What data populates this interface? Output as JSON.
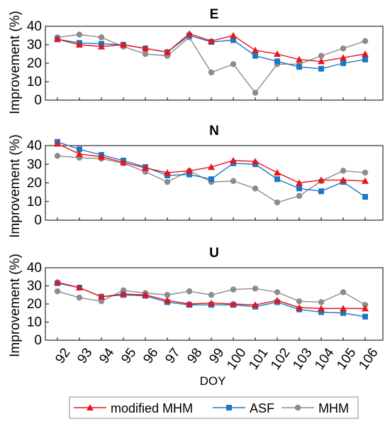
{
  "chart_data": {
    "type": "line",
    "x": [
      92,
      93,
      94,
      95,
      96,
      97,
      98,
      99,
      100,
      101,
      102,
      103,
      104,
      105,
      106
    ],
    "xtick_labels": [
      "92",
      "93",
      "94",
      "95",
      "96",
      "97",
      "98",
      "99",
      "100",
      "101",
      "102",
      "103",
      "104",
      "105",
      "106"
    ],
    "xlabel": "DOY",
    "ylabel": "Improvement (%)",
    "ylim": [
      0,
      40
    ],
    "yticks": [
      0,
      10,
      20,
      30,
      40
    ],
    "ytick_labels": [
      "0",
      "10",
      "20",
      "30",
      "40"
    ],
    "grid": false,
    "legend_position": "bottom",
    "series_styles": [
      {
        "name": "modified MHM",
        "color": "#e8141b",
        "marker": "triangle"
      },
      {
        "name": "ASF",
        "color": "#1f77c1",
        "marker": "square"
      },
      {
        "name": "MHM",
        "color": "#8c8c8c",
        "marker": "circle"
      }
    ],
    "panels": [
      {
        "title": "E",
        "series": [
          {
            "name": "modified MHM",
            "values": [
              33,
              30,
              29,
              30,
              28,
              26,
              36,
              32,
              35,
              27,
              25,
              22,
              21,
              23,
              25
            ]
          },
          {
            "name": "ASF",
            "values": [
              33,
              31,
              30.5,
              30,
              28,
              26,
              35,
              31.5,
              32.5,
              24,
              21,
              18,
              17,
              20,
              22
            ]
          },
          {
            "name": "MHM",
            "values": [
              34,
              35.5,
              34,
              29,
              25,
              24,
              34,
              15,
              19.5,
              4,
              19.5,
              19.5,
              24,
              28,
              32
            ]
          }
        ]
      },
      {
        "title": "N",
        "series": [
          {
            "name": "modified MHM",
            "values": [
              41,
              35.5,
              34,
              31,
              28,
              25.5,
              26.5,
              28.5,
              32,
              31.5,
              25.5,
              20,
              21.5,
              21.5,
              21
            ]
          },
          {
            "name": "ASF",
            "values": [
              42,
              38,
              35,
              32,
              28.5,
              24,
              24.5,
              22,
              30.5,
              30,
              22,
              17,
              15.5,
              20.5,
              12.5
            ]
          },
          {
            "name": "MHM",
            "values": [
              34.5,
              33.5,
              33,
              30.5,
              26,
              20.5,
              26.5,
              20.5,
              21,
              17,
              9.5,
              13,
              21,
              26.5,
              25.5
            ]
          }
        ]
      },
      {
        "title": "U",
        "series": [
          {
            "name": "modified MHM",
            "values": [
              32,
              29,
              24,
              25.5,
              25,
              22,
              20,
              20.5,
              20,
              19.5,
              22,
              18,
              17.5,
              17.5,
              17.5
            ]
          },
          {
            "name": "ASF",
            "values": [
              31.5,
              29,
              24,
              25,
              24.5,
              21,
              19.5,
              19.5,
              19.5,
              18.5,
              21,
              17,
              15.5,
              15,
              13
            ]
          },
          {
            "name": "MHM",
            "values": [
              27,
              23.5,
              21.5,
              27.5,
              26,
              25,
              27,
              25,
              28,
              28.5,
              26.5,
              21.5,
              21,
              26.5,
              19.5
            ]
          }
        ]
      }
    ]
  }
}
